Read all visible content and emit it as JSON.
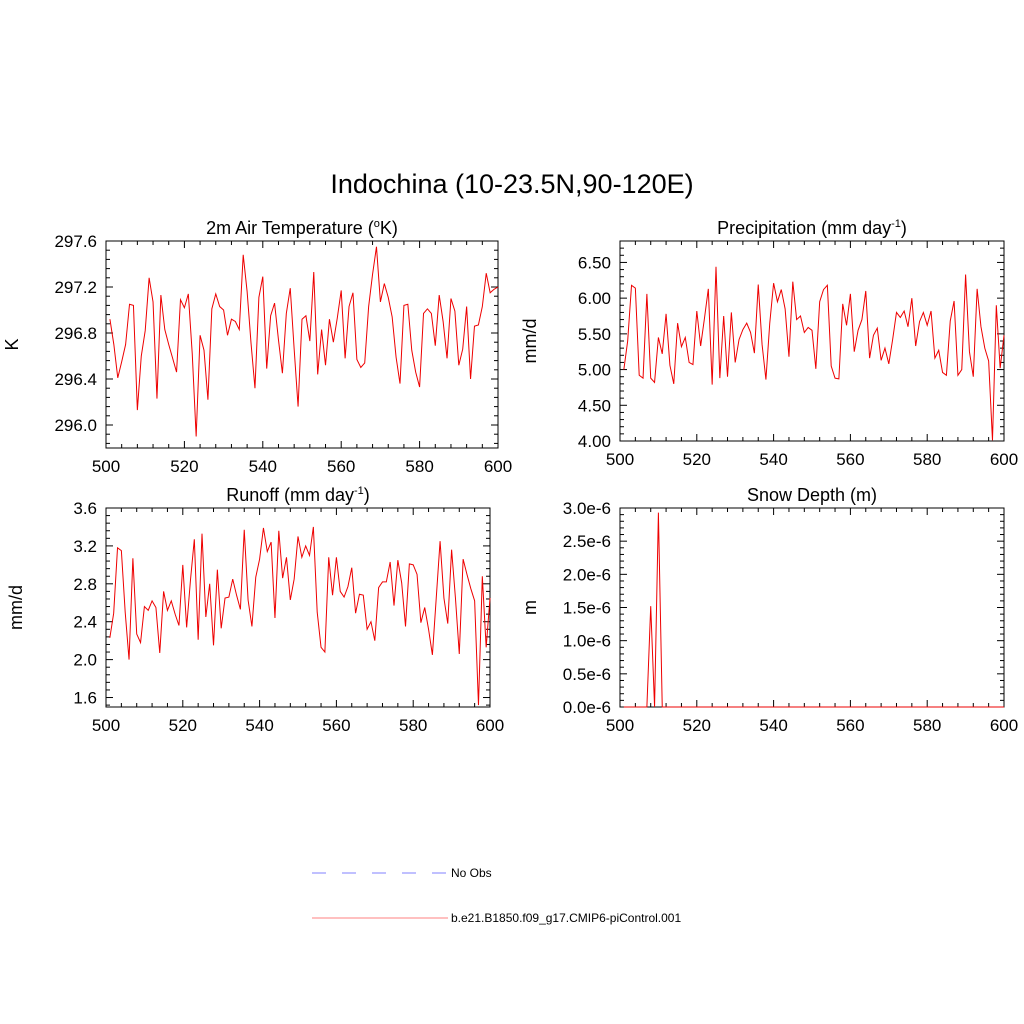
{
  "chart_data": {
    "title": "Indochina (10-23.5N,90-120E)",
    "legend": [
      {
        "label": "No Obs",
        "color": "#8080ff",
        "dash": true
      },
      {
        "label": "b.e21.B1850.f09_g17.CMIP6-piControl.001",
        "color": "#ff8080",
        "dash": false
      }
    ],
    "panels": [
      {
        "id": "temperature",
        "type": "line",
        "title_main": "2m Air Temperature (",
        "title_sup": "o",
        "title_tail": "K)",
        "ylabel": "K",
        "xlim": [
          500,
          600
        ],
        "ylim": [
          295.8,
          297.6
        ],
        "xticks": [
          500,
          520,
          540,
          560,
          580,
          600
        ],
        "yticks": [
          296.0,
          296.4,
          296.8,
          297.2,
          297.6
        ],
        "ytick_labels": [
          "296.0",
          "296.4",
          "296.8",
          "297.2",
          "297.6"
        ],
        "series_color": "#ee0000",
        "x_start": 501,
        "values": [
          296.92,
          296.7,
          296.41,
          296.55,
          296.7,
          297.05,
          297.04,
          296.13,
          296.6,
          296.82,
          297.28,
          297.07,
          296.23,
          297.13,
          296.83,
          296.7,
          296.58,
          296.46,
          297.09,
          297.02,
          297.14,
          296.62,
          295.9,
          296.78,
          296.65,
          296.22,
          297.01,
          297.14,
          297.03,
          297.0,
          296.78,
          296.92,
          296.9,
          296.83,
          297.48,
          297.16,
          296.71,
          296.32,
          297.11,
          297.29,
          296.49,
          296.95,
          297.06,
          296.74,
          296.45,
          296.97,
          297.19,
          296.66,
          296.16,
          296.92,
          296.95,
          296.73,
          297.33,
          296.44,
          296.83,
          296.52,
          296.92,
          296.72,
          296.93,
          297.17,
          296.58,
          297.03,
          297.15,
          296.57,
          296.5,
          296.54,
          297.03,
          297.31,
          297.55,
          297.07,
          297.23,
          297.11,
          296.94,
          296.59,
          296.36,
          297.04,
          297.05,
          296.65,
          296.46,
          296.33,
          296.97,
          297.01,
          296.97,
          296.69,
          297.13,
          296.9,
          296.58,
          297.1,
          296.99,
          296.52,
          296.66,
          297.03,
          296.4,
          296.86,
          296.87,
          297.03,
          297.32,
          297.15,
          297.18,
          297.2
        ]
      },
      {
        "id": "precipitation",
        "type": "line",
        "title_main": "Precipitation (mm day",
        "title_sup": "-1",
        "title_tail": ")",
        "ylabel": "mm/d",
        "xlim": [
          500,
          600
        ],
        "ylim": [
          4.0,
          6.8
        ],
        "xticks": [
          500,
          520,
          540,
          560,
          580,
          600
        ],
        "yticks": [
          4.0,
          4.5,
          5.0,
          5.5,
          6.0,
          6.5
        ],
        "ytick_labels": [
          "4.00",
          "4.50",
          "5.00",
          "5.50",
          "6.00",
          "6.50"
        ],
        "series_color": "#ee0000",
        "x_start": 501,
        "values": [
          5.0,
          5.4,
          6.18,
          6.14,
          4.92,
          4.88,
          6.06,
          4.88,
          4.82,
          5.45,
          5.22,
          5.78,
          5.06,
          4.8,
          5.65,
          5.32,
          5.45,
          5.1,
          5.07,
          5.82,
          5.33,
          5.72,
          6.13,
          4.79,
          6.44,
          4.88,
          5.75,
          4.9,
          5.8,
          5.1,
          5.42,
          5.56,
          5.65,
          5.52,
          5.23,
          6.19,
          5.35,
          4.86,
          5.65,
          6.21,
          5.95,
          6.12,
          5.85,
          5.18,
          6.23,
          5.7,
          5.75,
          5.52,
          5.59,
          5.55,
          5.01,
          5.95,
          6.12,
          6.18,
          5.05,
          4.88,
          4.87,
          5.92,
          5.62,
          6.06,
          5.25,
          5.55,
          5.7,
          6.1,
          5.16,
          5.48,
          5.58,
          5.13,
          5.3,
          5.08,
          5.42,
          5.8,
          5.73,
          5.82,
          5.6,
          6.0,
          5.33,
          5.67,
          5.8,
          5.62,
          5.82,
          5.16,
          5.27,
          4.96,
          4.92,
          5.68,
          5.96,
          4.92,
          5.0,
          6.33,
          5.25,
          4.9,
          6.13,
          5.6,
          5.3,
          5.12,
          4.01,
          5.9,
          5.02,
          5.48
        ]
      },
      {
        "id": "runoff",
        "type": "line",
        "title_main": "Runoff (mm day",
        "title_sup": "-1",
        "title_tail": ")",
        "ylabel": "mm/d",
        "xlim": [
          500,
          600
        ],
        "ylim": [
          1.5,
          3.6
        ],
        "xticks": [
          500,
          520,
          540,
          560,
          580,
          600
        ],
        "yticks": [
          1.6,
          2.0,
          2.4,
          2.8,
          3.2,
          3.6
        ],
        "ytick_labels": [
          "1.6",
          "2.0",
          "2.4",
          "2.8",
          "3.2",
          "3.6"
        ],
        "series_color": "#ee0000",
        "x_start": 501,
        "values": [
          2.23,
          2.49,
          3.18,
          3.15,
          2.5,
          2.0,
          3.07,
          2.27,
          2.18,
          2.56,
          2.52,
          2.62,
          2.55,
          2.07,
          2.72,
          2.52,
          2.62,
          2.48,
          2.36,
          3.0,
          2.34,
          2.84,
          3.27,
          2.21,
          3.33,
          2.45,
          2.8,
          2.15,
          2.95,
          2.33,
          2.65,
          2.66,
          2.85,
          2.68,
          2.53,
          3.37,
          2.63,
          2.35,
          2.87,
          3.06,
          3.39,
          3.14,
          3.24,
          2.44,
          3.36,
          2.86,
          3.08,
          2.63,
          2.85,
          3.3,
          3.08,
          3.2,
          3.1,
          3.4,
          2.5,
          2.13,
          2.08,
          3.08,
          2.68,
          3.08,
          2.72,
          2.66,
          2.77,
          2.97,
          2.49,
          2.69,
          2.68,
          2.32,
          2.4,
          2.2,
          2.76,
          2.82,
          2.82,
          3.03,
          2.57,
          3.05,
          2.81,
          2.35,
          3.01,
          3.0,
          2.9,
          2.39,
          2.55,
          2.32,
          2.05,
          2.65,
          3.25,
          2.65,
          2.38,
          3.16,
          2.65,
          2.06,
          3.06,
          2.9,
          2.75,
          2.62,
          1.52,
          2.88,
          2.13,
          2.65
        ]
      },
      {
        "id": "snow",
        "type": "line",
        "title_main": "Snow Depth (m)",
        "title_sup": "",
        "title_tail": "",
        "ylabel": "m",
        "xlim": [
          500,
          600
        ],
        "ylim": [
          0,
          3e-06
        ],
        "xticks": [
          500,
          520,
          540,
          560,
          580,
          600
        ],
        "yticks": [
          0,
          5e-07,
          1e-06,
          1.5e-06,
          2e-06,
          2.5e-06,
          3e-06
        ],
        "ytick_labels": [
          "0.0e-6",
          "0.5e-6",
          "1.0e-6",
          "1.5e-6",
          "2.0e-6",
          "2.5e-6",
          "3.0e-6"
        ],
        "series_color": "#ee0000",
        "x_start": 501,
        "values": [
          0,
          0,
          0,
          0,
          0,
          0,
          0,
          1.52e-06,
          0,
          2.93e-06,
          0,
          0,
          0,
          0,
          0,
          0,
          0,
          0,
          0,
          0,
          0,
          0,
          0,
          0,
          0,
          0,
          0,
          0,
          0,
          0,
          0,
          0,
          0,
          0,
          0,
          0,
          0,
          0,
          0,
          0,
          0,
          0,
          0,
          0,
          0,
          0,
          0,
          0,
          0,
          0,
          0,
          0,
          0,
          0,
          0,
          0,
          0,
          0,
          0,
          0,
          0,
          0,
          0,
          0,
          0,
          0,
          0,
          0,
          0,
          0,
          0,
          0,
          0,
          0,
          0,
          0,
          0,
          0,
          0,
          0,
          0,
          0,
          0,
          0,
          0,
          0,
          0,
          0,
          0,
          0,
          0,
          0,
          0,
          0,
          0,
          0,
          0,
          0,
          0,
          0
        ]
      }
    ]
  }
}
